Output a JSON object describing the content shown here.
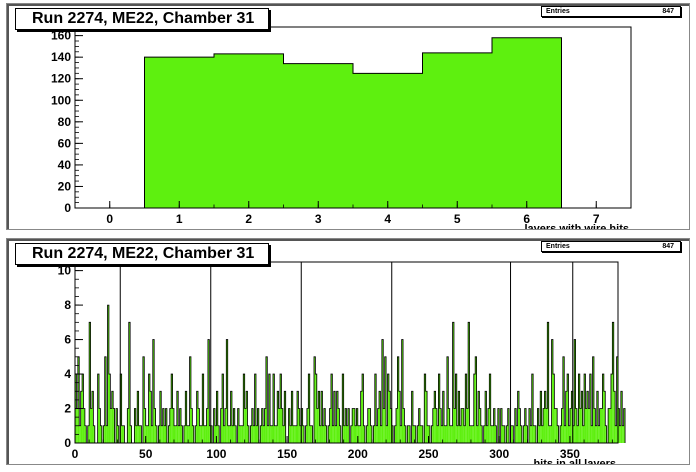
{
  "chart_data": [
    {
      "type": "bar",
      "title": "Run 2274, ME22, Chamber 31",
      "xlabel": "layers with wire hits",
      "ylabel": "",
      "stats": {
        "label": "Entries",
        "value": "847"
      },
      "fill_color": "#5ef00f",
      "line_color": "#000000",
      "xlim": [
        -0.5,
        7.5
      ],
      "ylim": [
        0,
        168
      ],
      "x_ticks": [
        0,
        1,
        2,
        3,
        4,
        5,
        6,
        7
      ],
      "y_ticks": [
        0,
        20,
        40,
        60,
        80,
        100,
        120,
        140,
        160
      ],
      "bin_width": 1,
      "bins": [
        {
          "x": 1,
          "value": 140
        },
        {
          "x": 2,
          "value": 143
        },
        {
          "x": 3,
          "value": 134
        },
        {
          "x": 4,
          "value": 125
        },
        {
          "x": 5,
          "value": 144
        },
        {
          "x": 6,
          "value": 158
        }
      ]
    },
    {
      "type": "bar",
      "title": "Run 2274, ME22, Chamber 31",
      "xlabel": "hits in all layers",
      "ylabel": "",
      "stats": {
        "label": "Entries",
        "value": "847"
      },
      "fill_color": "#5ef00f",
      "line_color": "#000000",
      "xlim": [
        0,
        384
      ],
      "ylim": [
        0,
        10.5
      ],
      "x_ticks": [
        0,
        50,
        100,
        150,
        200,
        250,
        300,
        350
      ],
      "y_ticks": [
        0,
        2,
        4,
        6,
        8,
        10
      ],
      "bin_width": 1,
      "separators": [
        32,
        96,
        160,
        224,
        308,
        352
      ],
      "values": [
        4,
        2,
        5,
        1,
        3,
        4,
        2,
        1,
        0,
        1,
        7,
        2,
        3,
        1,
        0,
        0,
        4,
        2,
        1,
        0,
        1,
        5,
        1,
        8,
        4,
        2,
        3,
        2,
        0,
        2,
        1,
        0,
        4,
        1,
        1,
        0,
        0,
        2,
        7,
        1,
        0,
        0,
        2,
        1,
        3,
        1,
        1,
        0,
        5,
        2,
        1,
        1,
        4,
        3,
        1,
        6,
        2,
        1,
        0,
        1,
        3,
        1,
        2,
        1,
        2,
        0,
        1,
        2,
        4,
        2,
        1,
        1,
        3,
        1,
        2,
        1,
        0,
        1,
        3,
        1,
        1,
        5,
        2,
        1,
        0,
        1,
        3,
        2,
        1,
        1,
        4,
        1,
        1,
        2,
        6,
        1,
        1,
        0,
        2,
        1,
        3,
        1,
        0,
        2,
        4,
        1,
        2,
        6,
        1,
        1,
        3,
        1,
        2,
        1,
        0,
        2,
        1,
        1,
        1,
        4,
        2,
        3,
        1,
        0,
        1,
        2,
        1,
        4,
        1,
        2,
        0,
        1,
        2,
        1,
        2,
        5,
        1,
        4,
        1,
        1,
        4,
        1,
        1,
        3,
        2,
        4,
        2,
        1,
        3,
        0,
        0,
        2,
        1,
        3,
        1,
        1,
        1,
        3,
        2,
        1,
        2,
        1,
        0,
        1,
        2,
        4,
        1,
        1,
        0,
        5,
        4,
        2,
        3,
        1,
        3,
        1,
        2,
        1,
        0,
        1,
        2,
        4,
        1,
        3,
        1,
        3,
        2,
        1,
        0,
        4,
        1,
        2,
        1,
        2,
        0,
        1,
        2,
        2,
        1,
        2,
        1,
        1,
        3,
        4,
        1,
        0,
        1,
        2,
        2,
        1,
        0,
        1,
        4,
        1,
        2,
        3,
        1,
        6,
        2,
        5,
        1,
        4,
        3,
        2,
        1,
        0,
        1,
        2,
        5,
        3,
        1,
        6,
        2,
        1,
        0,
        1,
        1,
        0,
        3,
        1,
        1,
        0,
        1,
        2,
        1,
        1,
        0,
        4,
        3,
        1,
        1,
        0,
        1,
        2,
        3,
        2,
        1,
        4,
        2,
        1,
        3,
        1,
        1,
        5,
        2,
        1,
        1,
        7,
        2,
        4,
        1,
        3,
        1,
        2,
        2,
        1,
        4,
        2,
        7,
        1,
        1,
        1,
        4,
        5,
        1,
        3,
        2,
        1,
        0,
        1,
        3,
        1,
        2,
        4,
        1,
        1,
        2,
        1,
        0,
        2,
        0,
        2,
        1,
        1,
        0,
        1,
        2,
        0,
        1,
        1,
        0,
        2,
        1,
        3,
        2,
        1,
        0,
        1,
        2,
        1,
        0,
        2,
        1,
        4,
        1,
        1,
        0,
        2,
        1,
        3,
        1,
        2,
        3,
        2,
        7,
        1,
        1,
        6,
        4,
        2,
        2,
        1,
        0,
        1,
        2,
        5,
        1,
        3,
        4,
        1,
        2,
        3,
        1,
        6,
        2,
        1,
        4,
        2,
        3,
        1,
        4,
        2,
        3,
        2,
        4,
        1,
        5,
        2,
        1,
        3,
        1,
        2,
        2,
        4,
        3,
        1,
        0,
        2,
        2,
        4,
        7,
        3,
        1,
        5,
        2,
        1,
        3,
        1,
        2
      ]
    }
  ]
}
